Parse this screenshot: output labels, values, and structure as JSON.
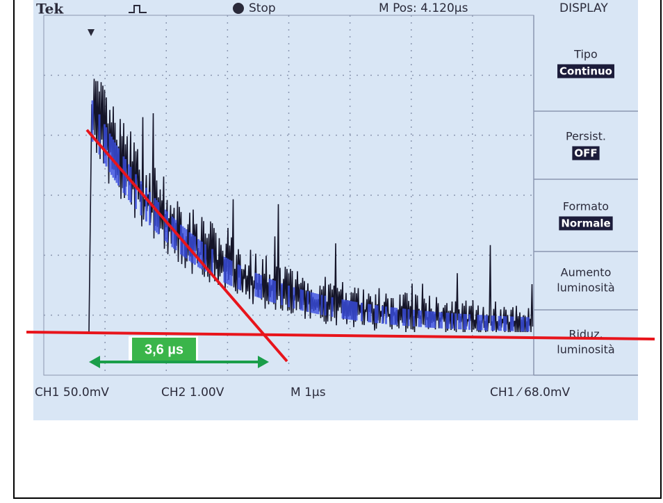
{
  "header": {
    "brand": "Tek",
    "status": "Stop",
    "position": "M Pos: 4.120µs",
    "menu_title": "DISPLAY"
  },
  "menu": [
    {
      "label": "Tipo",
      "value": "Continuo"
    },
    {
      "label": "Persist.",
      "value": "OFF"
    },
    {
      "label": "Formato",
      "value": "Normale"
    },
    {
      "lines": [
        "Aumento",
        "luminosità"
      ]
    },
    {
      "lines": [
        "Riduz.",
        "luminosità"
      ]
    }
  ],
  "footer": {
    "ch1": "CH1 50.0mV",
    "ch2": "CH2 1.00V",
    "timebase": "M 1µs",
    "trigger": "CH1 ⁄ 68.0mV"
  },
  "annotation": {
    "label": "3,6 µs"
  }
}
